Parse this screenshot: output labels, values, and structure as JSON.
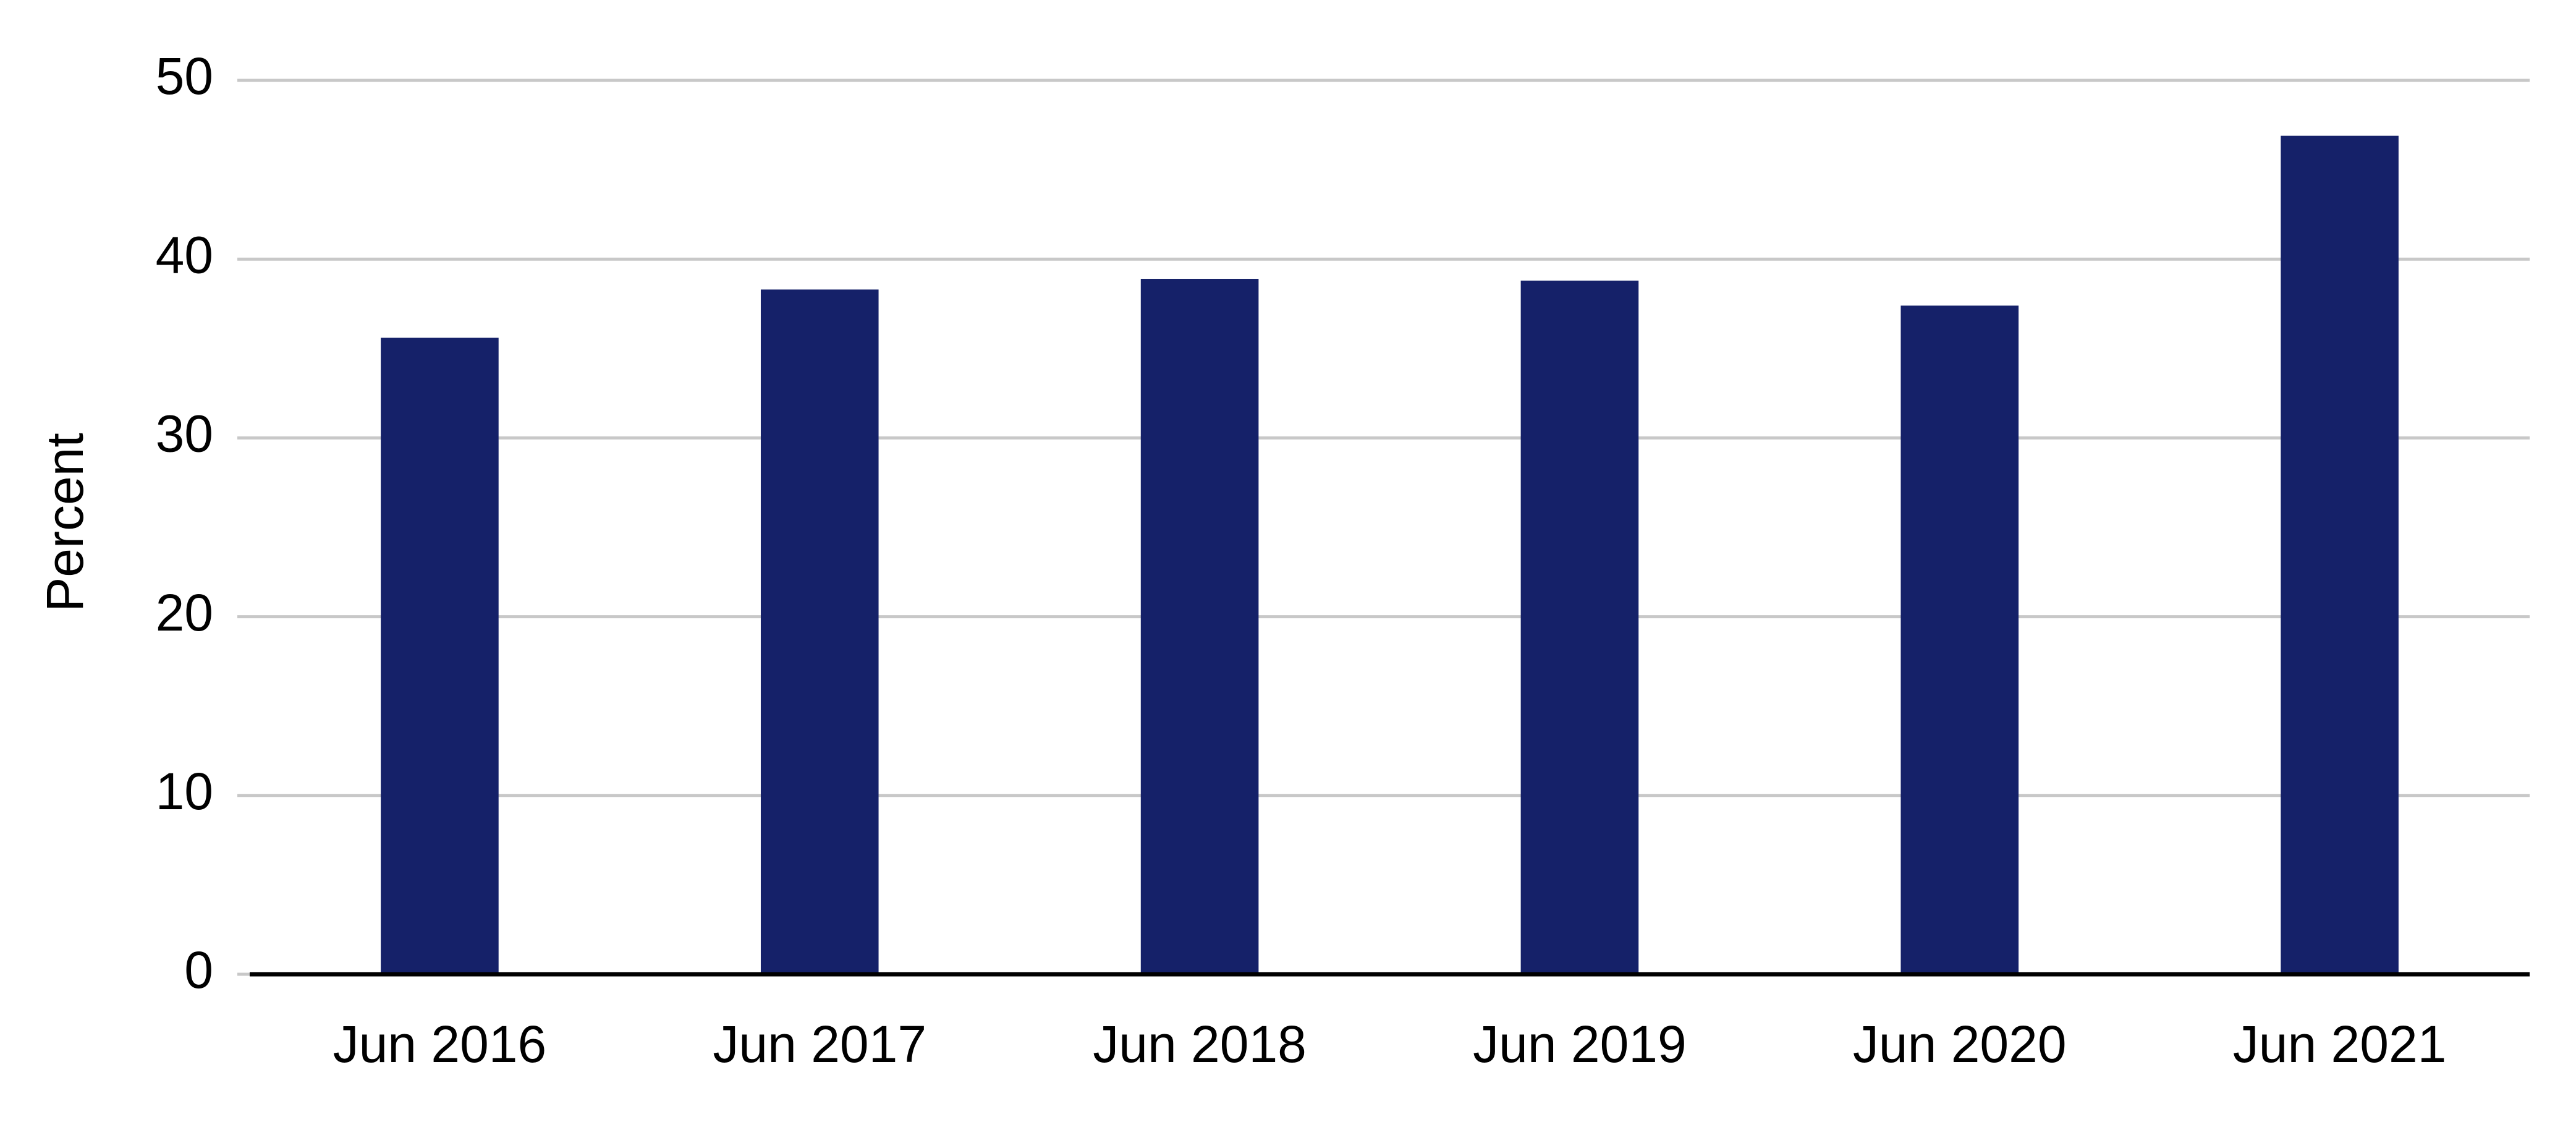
{
  "chart_data": {
    "type": "bar",
    "y_label": "Percent",
    "categories": [
      "Jun 2016",
      "Jun 2017",
      "Jun 2018",
      "Jun 2019",
      "Jun 2020",
      "Jun 2021"
    ],
    "values": [
      35.6,
      38.3,
      38.9,
      38.8,
      37.4,
      46.9
    ],
    "color": "#152169",
    "ylim": [
      0,
      50
    ],
    "yticks": [
      0,
      10,
      20,
      30,
      40,
      50
    ],
    "grid": true
  }
}
